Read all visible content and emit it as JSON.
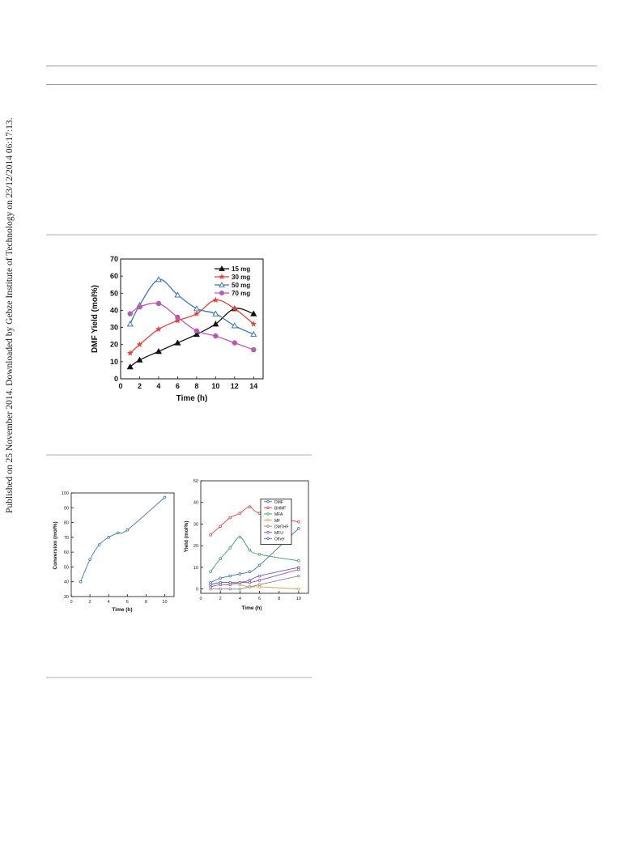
{
  "page": {
    "side_note": "Published on 25 November 2014. Downloaded by Gebze Institute of Technology on 23/12/2014 06:17:13."
  },
  "chart_data": [
    {
      "type": "line",
      "xlabel": "Time (h)",
      "ylabel": "DMF Yield (mol%)",
      "xlim": [
        0,
        15
      ],
      "ylim": [
        0,
        70
      ],
      "xticks": [
        0,
        2,
        4,
        6,
        8,
        10,
        12,
        14
      ],
      "yticks": [
        0,
        10,
        20,
        30,
        40,
        50,
        60,
        70
      ],
      "legend_position": "top-right",
      "series": [
        {
          "name": "15 mg",
          "color": "#111111",
          "marker": "triangle",
          "x": [
            1,
            2,
            4,
            6,
            8,
            10,
            12,
            14
          ],
          "y": [
            7,
            11,
            16,
            21,
            26,
            32,
            41,
            38
          ]
        },
        {
          "name": "30 mg",
          "color": "#e8403a",
          "marker": "star",
          "x": [
            1,
            2,
            4,
            6,
            8,
            10,
            12,
            14
          ],
          "y": [
            15,
            20,
            29,
            34,
            38,
            46,
            41,
            32
          ]
        },
        {
          "name": "50 mg",
          "color": "#3a74c0",
          "marker": "triangle-open",
          "x": [
            1,
            2,
            4,
            6,
            8,
            10,
            12,
            14
          ],
          "y": [
            32,
            43,
            58,
            49,
            41,
            38,
            31,
            26
          ]
        },
        {
          "name": "70 mg",
          "color": "#b85ab5",
          "marker": "circle",
          "x": [
            1,
            2,
            4,
            6,
            8,
            10,
            12,
            14
          ],
          "y": [
            38,
            42,
            44,
            36,
            28,
            25,
            21,
            17
          ]
        }
      ]
    },
    {
      "type": "line",
      "xlabel": "Time (h)",
      "ylabel": "Conversion (mol%)",
      "xlim": [
        0,
        11
      ],
      "ylim": [
        30,
        100
      ],
      "xticks": [
        0,
        2,
        4,
        6,
        8,
        10
      ],
      "yticks": [
        30,
        40,
        50,
        60,
        70,
        80,
        90,
        100
      ],
      "series": [
        {
          "color": "#3a74c0",
          "x": [
            1,
            2,
            3,
            4,
            5,
            6,
            10
          ],
          "y": [
            40,
            55,
            65,
            70,
            73,
            75,
            97
          ]
        }
      ]
    },
    {
      "type": "line",
      "xlabel": "Time (h)",
      "ylabel": "Yield (mol%)",
      "xlim": [
        0,
        11
      ],
      "ylim": [
        -2,
        50
      ],
      "xticks": [
        0,
        2,
        4,
        6,
        8,
        10
      ],
      "yticks": [
        0,
        10,
        20,
        30,
        40,
        50
      ],
      "legend_position": "top-right",
      "series": [
        {
          "name": "DMF",
          "color": "#3a74c0",
          "x": [
            1,
            2,
            3,
            4,
            5,
            6,
            10
          ],
          "y": [
            3,
            5,
            6,
            7,
            8,
            11,
            28
          ]
        },
        {
          "name": "BHMF",
          "color": "#e8403a",
          "x": [
            1,
            2,
            3,
            4,
            5,
            6,
            10
          ],
          "y": [
            25,
            29,
            33,
            35,
            38,
            35,
            31
          ]
        },
        {
          "name": "MFA",
          "color": "#3aa06a",
          "x": [
            1,
            2,
            3,
            4,
            5,
            6,
            10
          ],
          "y": [
            8,
            14,
            19,
            24,
            18,
            16,
            13
          ]
        },
        {
          "name": "MF",
          "color": "#e0a23a",
          "x": [
            1,
            2,
            3,
            4,
            5,
            6,
            10
          ],
          "y": [
            2,
            3,
            3,
            2,
            1,
            1,
            0
          ]
        },
        {
          "name": "DMTHF",
          "color": "#888888",
          "x": [
            1,
            2,
            3,
            4,
            5,
            6,
            10
          ],
          "y": [
            0,
            0,
            0,
            0,
            1,
            2,
            6
          ]
        },
        {
          "name": "MFU",
          "color": "#9a4fb0",
          "x": [
            1,
            2,
            3,
            4,
            5,
            6,
            10
          ],
          "y": [
            1,
            2,
            2,
            3,
            3,
            4,
            9
          ]
        },
        {
          "name": "Other",
          "color": "#5b5fc9",
          "x": [
            1,
            2,
            3,
            4,
            5,
            6,
            10
          ],
          "y": [
            2,
            3,
            3,
            3,
            4,
            6,
            10
          ]
        }
      ]
    }
  ]
}
